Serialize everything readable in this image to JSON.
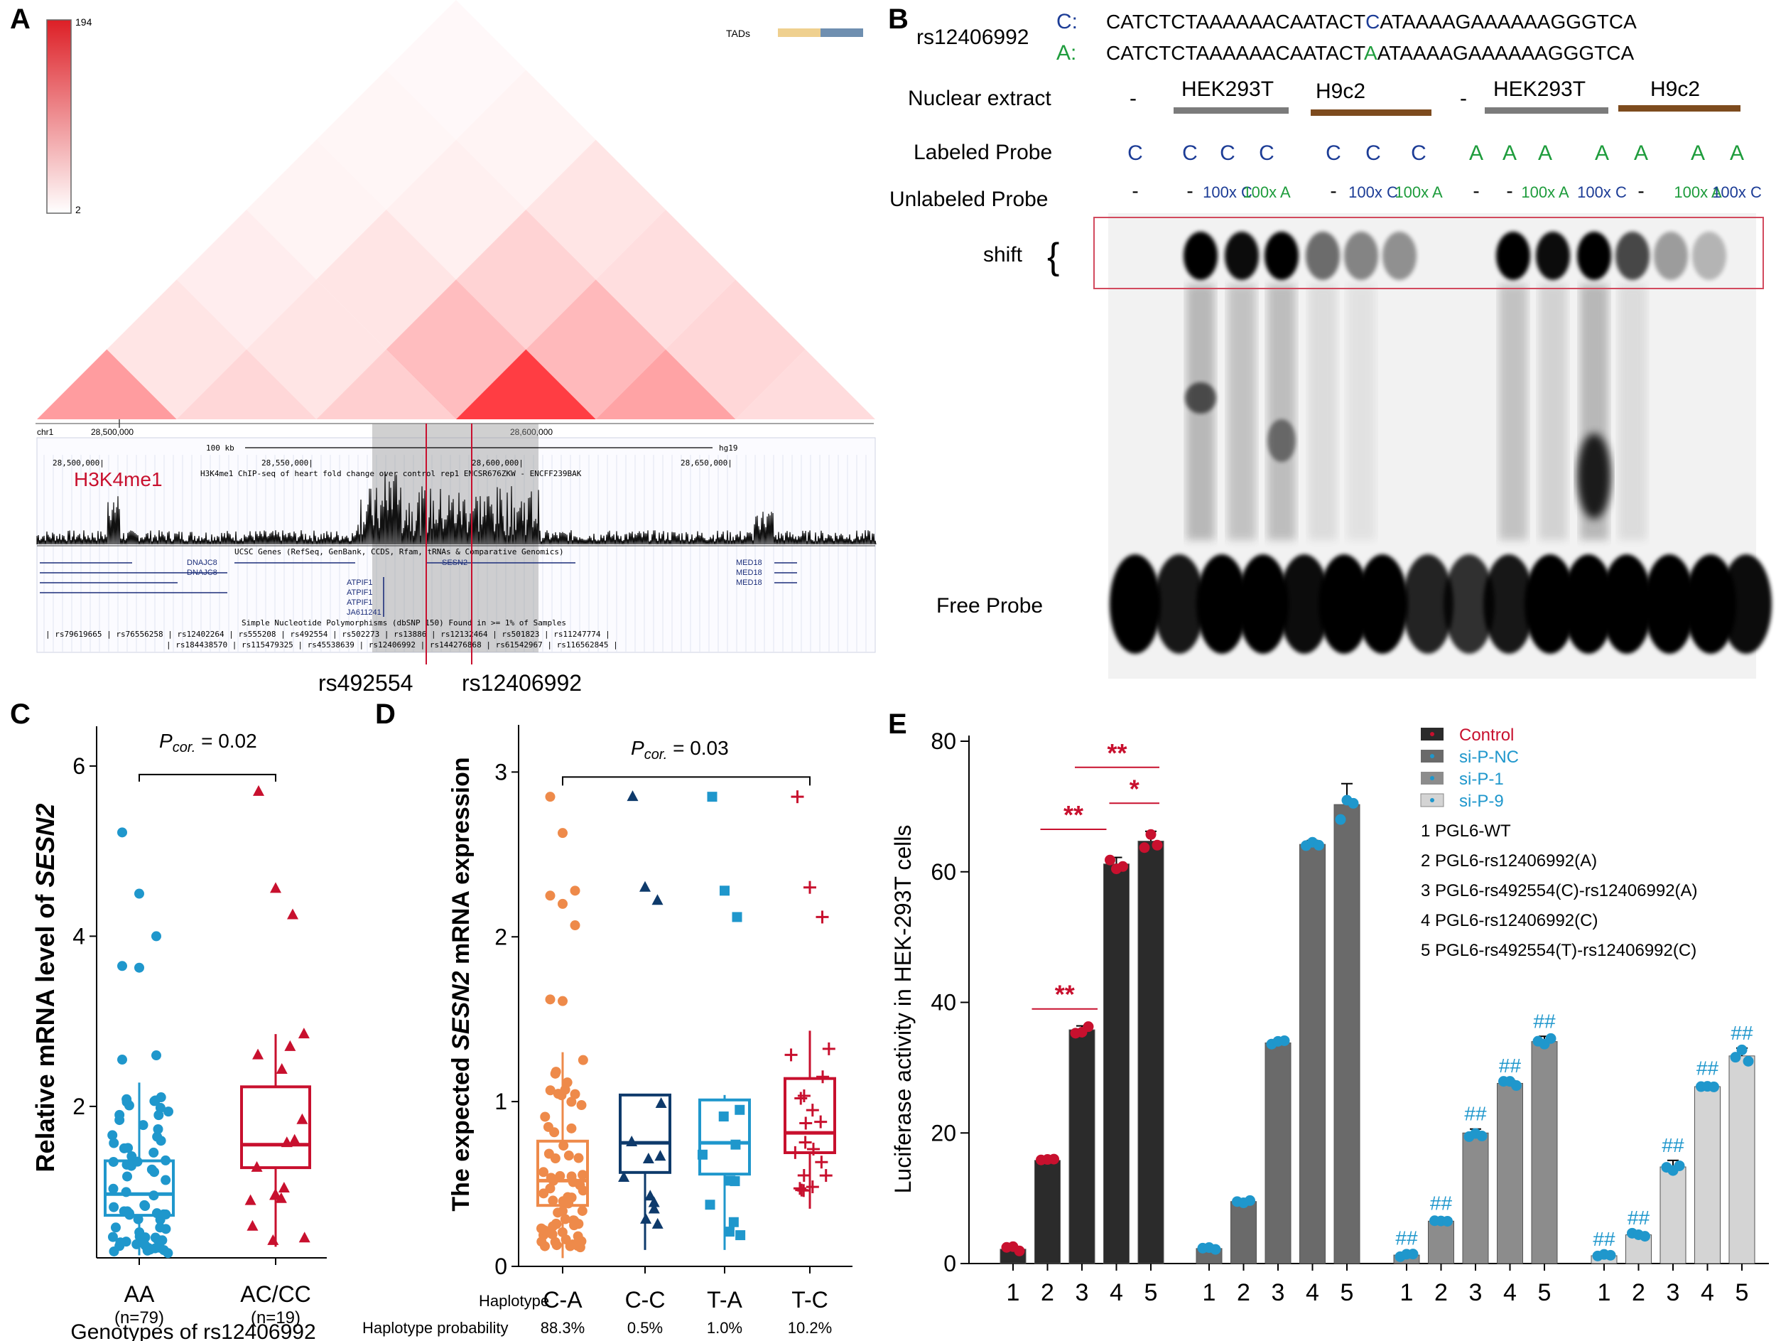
{
  "panelA": {
    "label": "A",
    "scale_max": "194",
    "scale_min": "2",
    "tads_label": "TADs",
    "chr": "chr1",
    "coord1": "28,500,000",
    "coord2": "28,600,000",
    "scale_bar": "100 kb",
    "assembly": "hg19",
    "ruler": [
      "28,500,000|",
      "28,550,000|",
      "28,600,000|",
      "28,650,000|"
    ],
    "chip_label": "H3K4me1",
    "chip_desc": "H3K4me1 ChIP-seq of heart fold change over control rep1 ENCSR676ZKW - ENCFF239BAK",
    "genes_header": "UCSC Genes (RefSeq, GenBank, CCDS, Rfam, tRNAs & Comparative Genomics)",
    "gene_names": [
      "DNAJC8",
      "DNAJC8",
      "ATPIF1",
      "ATPIF1",
      "ATPIF1",
      "SESN2",
      "MED18",
      "MED18",
      "MED18",
      "JA611241"
    ],
    "snp_header": "Simple Nucleotide Polymorphisms (dbSNP 150) Found in >= 1% of Samples",
    "snp_row1": "| rs79619665 | rs76556258 | rs12402264 | rs555208 | rs492554 | rs502273 | rs13886 | rs12132464 | rs501823 | rs11247774 |",
    "snp_row2": "| rs184438570 | rs115479325 | rs45538639 | rs12406992 | rs144276868 | rs61542967 | rs116562845 |",
    "callout1": "rs492554",
    "callout2": "rs12406992"
  },
  "panelB": {
    "label": "B",
    "snp": "rs12406992",
    "allele_c_label": "C:",
    "allele_a_label": "A:",
    "seq_prefix": "CATCTCTAAAAAACAATACT",
    "seq_c_base": "C",
    "seq_a_base": "A",
    "seq_suffix": "ATAAAAGAAAAAAGGGTCA",
    "row_nuclear": "Nuclear extract",
    "row_labeled": "Labeled Probe",
    "row_unlabeled": "Unlabeled Probe",
    "dash": "-",
    "hek": "HEK293T",
    "h9c2": "H9c2",
    "labeled": [
      "C",
      "C",
      "C",
      "C",
      "C",
      "C",
      "C",
      "A",
      "A",
      "A",
      "A",
      "A",
      "A",
      "A"
    ],
    "unlabeled": [
      "-",
      "-",
      "100x C",
      "100x A",
      "-",
      "100x C",
      "100x A",
      "-",
      "-",
      "100x A",
      "100x C",
      "-",
      "100x A",
      "100x C"
    ],
    "shift": "shift",
    "brace": "{",
    "free_probe": "Free Probe"
  },
  "panelC": {
    "label": "C",
    "ylabel_pre": "Relative mRNA level of ",
    "ylabel_gene": "SESN2",
    "pval_p": "P",
    "pval_sub": "cor.",
    "pval_rest": " = 0.02",
    "yticks": [
      "2",
      "4",
      "6"
    ],
    "groups": [
      "AA",
      "AC/CC"
    ],
    "ns": [
      "(n=79)",
      "(n=19)"
    ],
    "xlabel": "Genotypes of rs12406992"
  },
  "panelD": {
    "label": "D",
    "ylabel_pre": "The expected ",
    "ylabel_gene": "SESN2",
    "ylabel_post": " mRNA expression",
    "pval_p": "P",
    "pval_sub": "cor.",
    "pval_rest": " = 0.03",
    "yticks": [
      "0",
      "1",
      "2",
      "3"
    ],
    "haplotype_label": "Haplotype",
    "haplotypes": [
      "C-A",
      "C-C",
      "T-A",
      "T-C"
    ],
    "prob_label": "Haplotype probability",
    "probs": [
      "88.3%",
      "0.5%",
      "1.0%",
      "10.2%"
    ]
  },
  "panelE": {
    "label": "E",
    "ylabel": "Luciferase activity in HEK-293T cells",
    "yticks": [
      "0",
      "20",
      "40",
      "60",
      "80"
    ],
    "legend": [
      "Control",
      "si-P-NC",
      "si-P-1",
      "si-P-9"
    ],
    "constructs": [
      "1 PGL6-WT",
      "2 PGL6-rs12406992(A)",
      "3 PGL6-rs492554(C)-rs12406992(A)",
      "4 PGL6-rs12406992(C)",
      "5 PGL6-rs492554(T)-rs12406992(C)"
    ],
    "xticks": [
      "1",
      "2",
      "3",
      "4",
      "5"
    ],
    "sig_double": "**",
    "sig_single": "*",
    "sig_hash": "##"
  },
  "colors": {
    "red": "#c8102e",
    "blue": "#1f97cc",
    "navy": "#0e3a6b",
    "green": "#1e9c3c",
    "orange": "#ee8a4a",
    "dark_blue_text": "#1c3c96",
    "bar_control": "#2b2b2b",
    "bar_nc": "#6a6a6a",
    "bar_p1": "#8c8c8c",
    "bar_p9": "#d4d4d4"
  },
  "chart_data": [
    {
      "panel": "C",
      "type": "box",
      "title": "",
      "xlabel": "Genotypes of rs12406992",
      "ylabel": "Relative mRNA level of SESN2",
      "categories": [
        "AA",
        "AC/CC"
      ],
      "ylim": [
        0,
        6.3
      ],
      "boxes": [
        {
          "name": "AA",
          "q1": 0.72,
          "median": 0.97,
          "q3": 1.36,
          "whisker_low": 0.25,
          "whisker_high": 2.28
        },
        {
          "name": "AC/CC",
          "q1": 1.28,
          "median": 1.55,
          "q3": 2.23,
          "whisker_low": 0.35,
          "whisker_high": 2.85
        }
      ],
      "outliers": {
        "AA": [
          5.22,
          4.5,
          4.0,
          3.65,
          3.63,
          2.6,
          2.55
        ],
        "AC/CC": [
          5.7,
          4.56,
          4.25
        ]
      },
      "annotation": "Pcor. = 0.02"
    },
    {
      "panel": "D",
      "type": "box",
      "xlabel": "Haplotype",
      "ylabel": "The expected SESN2 mRNA expression",
      "categories": [
        "C-A",
        "C-C",
        "T-A",
        "T-C"
      ],
      "ylim": [
        0,
        3.2
      ],
      "boxes": [
        {
          "name": "C-A",
          "q1": 0.37,
          "median": 0.52,
          "q3": 0.76,
          "whisker_low": 0.05,
          "whisker_high": 1.3
        },
        {
          "name": "C-C",
          "q1": 0.57,
          "median": 0.75,
          "q3": 1.04,
          "whisker_low": 0.1,
          "whisker_high": 1.04
        },
        {
          "name": "T-A",
          "q1": 0.56,
          "median": 0.75,
          "q3": 1.01,
          "whisker_low": 0.1,
          "whisker_high": 1.04
        },
        {
          "name": "T-C",
          "q1": 0.69,
          "median": 0.81,
          "q3": 1.14,
          "whisker_low": 0.35,
          "whisker_high": 1.43
        }
      ],
      "outliers": {
        "C-A": [
          2.85,
          2.63,
          2.28,
          2.25,
          2.2,
          2.07,
          1.62,
          1.61
        ],
        "C-C": [
          2.85,
          2.3,
          2.22
        ],
        "T-A": [
          2.85,
          2.28,
          2.12
        ],
        "T-C": [
          2.85,
          2.3,
          2.12
        ]
      },
      "annotation": "Pcor. = 0.03"
    },
    {
      "panel": "E",
      "type": "bar",
      "ylabel": "Luciferase activity in HEK-293T cells",
      "categories": [
        "1",
        "2",
        "3",
        "4",
        "5"
      ],
      "ylim": [
        0,
        80
      ],
      "series": [
        {
          "name": "Control",
          "values": [
            2.2,
            15.8,
            35.8,
            61.2,
            64.7
          ],
          "errors": [
            0.4,
            0.6,
            0.6,
            1.0,
            1.5
          ]
        },
        {
          "name": "si-P-NC",
          "values": [
            2.3,
            9.5,
            33.8,
            64.2,
            70.3
          ],
          "errors": [
            0.3,
            0.4,
            0.4,
            0.6,
            3.2
          ]
        },
        {
          "name": "si-P-1",
          "values": [
            1.3,
            6.5,
            20.0,
            27.6,
            34.0
          ],
          "errors": [
            0.3,
            0.4,
            0.6,
            0.4,
            0.8
          ]
        },
        {
          "name": "si-P-9",
          "values": [
            1.2,
            4.4,
            14.8,
            27.1,
            31.8
          ],
          "errors": [
            0.2,
            0.3,
            1.0,
            0.5,
            1.2
          ]
        }
      ],
      "significance": [
        {
          "between": "Control 2-3",
          "mark": "**"
        },
        {
          "between": "Control 3-4",
          "mark": "**"
        },
        {
          "between": "Control 3-5",
          "mark": "**"
        },
        {
          "between": "Control 4-5",
          "mark": "*"
        },
        {
          "series": "si-P-1",
          "mark": "##",
          "bars": [
            1,
            2,
            3,
            4,
            5
          ]
        },
        {
          "series": "si-P-9",
          "mark": "##",
          "bars": [
            1,
            2,
            3,
            4,
            5
          ]
        }
      ]
    }
  ]
}
